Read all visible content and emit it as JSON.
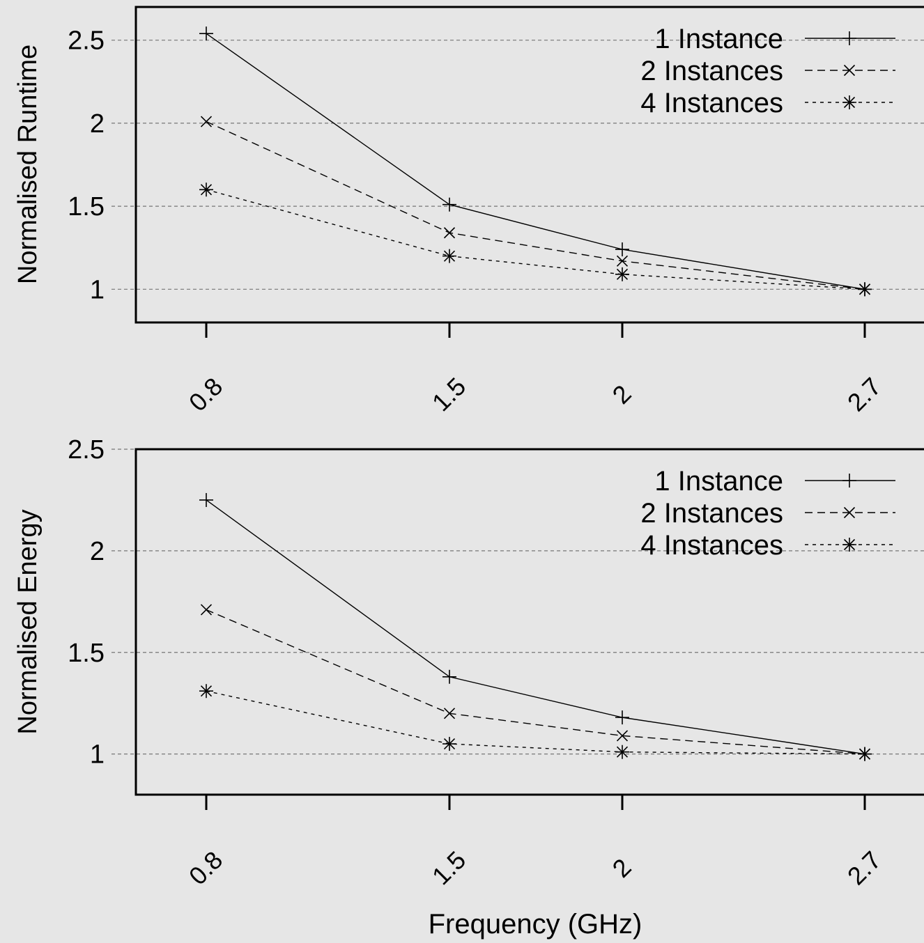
{
  "chart_data": [
    {
      "type": "line",
      "title": "",
      "xlabel": "",
      "ylabel": "Normalised Runtime",
      "x": [
        "0.8",
        "1.5",
        "2",
        "2.7"
      ],
      "x_tick_labels": [
        "0.8",
        "1.5",
        "2",
        "2.7"
      ],
      "y_ticks": [
        1,
        1.5,
        2,
        2.5
      ],
      "y_tick_labels": [
        "1",
        "1.5",
        "2",
        "2.5"
      ],
      "ylim": [
        0.8,
        2.7
      ],
      "grid": "horizontal dashed",
      "legend_position": "top-right",
      "series": [
        {
          "name": "1 Instance",
          "values": [
            2.54,
            1.51,
            1.24,
            1.0
          ],
          "dash": "solid",
          "marker": "plus"
        },
        {
          "name": "2 Instances",
          "values": [
            2.01,
            1.34,
            1.17,
            1.0
          ],
          "dash": "dashed",
          "marker": "cross"
        },
        {
          "name": "4 Instances",
          "values": [
            1.6,
            1.2,
            1.09,
            1.0
          ],
          "dash": "dotted",
          "marker": "star"
        }
      ]
    },
    {
      "type": "line",
      "title": "",
      "xlabel": "Frequency (GHz)",
      "ylabel": "Normalised Energy",
      "x": [
        "0.8",
        "1.5",
        "2",
        "2.7"
      ],
      "x_tick_labels": [
        "0.8",
        "1.5",
        "2",
        "2.7"
      ],
      "y_ticks": [
        1,
        1.5,
        2,
        2.5
      ],
      "y_tick_labels": [
        "1",
        "1.5",
        "2",
        "2.5"
      ],
      "ylim": [
        0.8,
        2.5
      ],
      "grid": "horizontal dashed",
      "legend_position": "top-right",
      "series": [
        {
          "name": "1 Instance",
          "values": [
            2.25,
            1.38,
            1.18,
            1.0
          ],
          "dash": "solid",
          "marker": "plus"
        },
        {
          "name": "2 Instances",
          "values": [
            1.71,
            1.2,
            1.09,
            1.0
          ],
          "dash": "dashed",
          "marker": "cross"
        },
        {
          "name": "4 Instances",
          "values": [
            1.31,
            1.05,
            1.01,
            1.0
          ],
          "dash": "dotted",
          "marker": "star"
        }
      ]
    }
  ],
  "colors": {
    "background": "#e6e6e6",
    "ink": "#000000",
    "grid": "#777777"
  }
}
